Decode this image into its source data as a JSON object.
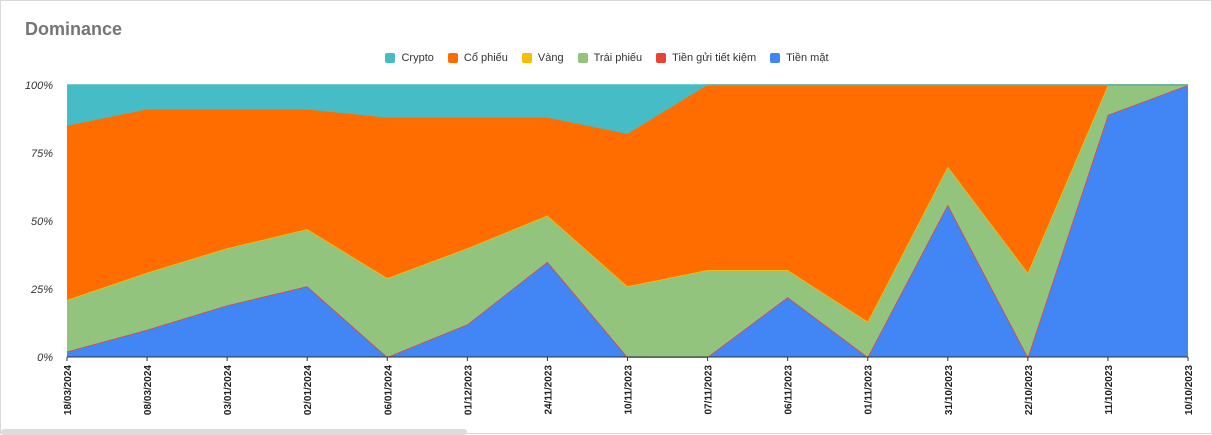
{
  "title": "Dominance",
  "legend": [
    {
      "name": "Crypto",
      "color": "#46bdc6"
    },
    {
      "name": "Cổ phiếu",
      "color": "#ff6d01"
    },
    {
      "name": "Vàng",
      "color": "#fbbc04"
    },
    {
      "name": "Trái phiếu",
      "color": "#93c47d"
    },
    {
      "name": "Tiền gửi tiết kiệm",
      "color": "#ea4335"
    },
    {
      "name": "Tiền mặt",
      "color": "#4285f4"
    }
  ],
  "chart_data": {
    "type": "area",
    "stacked": true,
    "title": "Dominance",
    "xlabel": "",
    "ylabel": "",
    "ylim": [
      0,
      100
    ],
    "y_ticks": [
      "0%",
      "25%",
      "50%",
      "75%",
      "100%"
    ],
    "grid": true,
    "legend_position": "top",
    "categories": [
      "18/03/2024",
      "08/03/2024",
      "03/01/2024",
      "02/01/2024",
      "06/01/2024",
      "01/12/2023",
      "24/11/2023",
      "10/11/2023",
      "07/11/2023",
      "06/11/2023",
      "01/11/2023",
      "31/10/2023",
      "22/10/2023",
      "11/10/2023",
      "10/10/2023"
    ],
    "series": [
      {
        "name": "Tiền mặt",
        "color": "#4285f4",
        "values": [
          2,
          10,
          19,
          26,
          0,
          12,
          35,
          0,
          0,
          22,
          0,
          56,
          0,
          89,
          100
        ]
      },
      {
        "name": "Tiền gửi tiết kiệm",
        "color": "#ea4335",
        "values": [
          0,
          0,
          0,
          0,
          0,
          0,
          0,
          0,
          0,
          0,
          0,
          0,
          0,
          0,
          0
        ]
      },
      {
        "name": "Trái phiếu",
        "color": "#93c47d",
        "values": [
          19,
          21,
          21,
          21,
          29,
          28,
          17,
          26,
          32,
          10,
          13,
          14,
          31,
          11,
          0
        ]
      },
      {
        "name": "Vàng",
        "color": "#fbbc04",
        "values": [
          0,
          0,
          0,
          0,
          0,
          0,
          0,
          0,
          0,
          0,
          0,
          0,
          0,
          0,
          0
        ]
      },
      {
        "name": "Cổ phiếu",
        "color": "#ff6d01",
        "values": [
          64,
          60,
          51,
          44,
          59,
          48,
          36,
          56,
          68,
          68,
          87,
          30,
          69,
          0,
          0
        ]
      },
      {
        "name": "Crypto",
        "color": "#46bdc6",
        "values": [
          15,
          9,
          9,
          9,
          12,
          12,
          12,
          18,
          0,
          0,
          0,
          0,
          0,
          0,
          0
        ]
      }
    ]
  }
}
